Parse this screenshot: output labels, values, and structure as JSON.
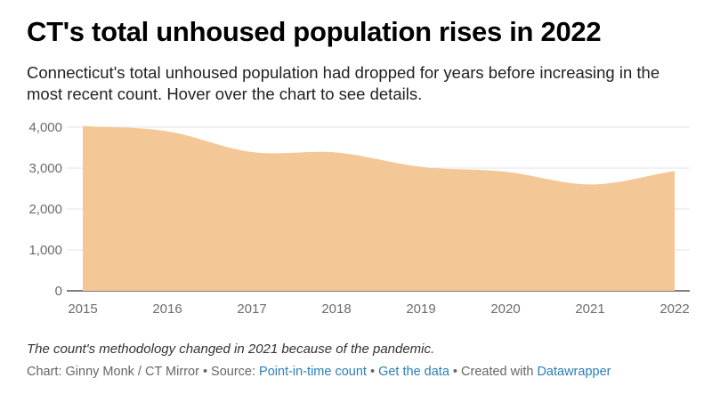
{
  "header": {
    "title": "CT's total unhoused population rises in 2022",
    "subtitle": "Connecticut's total unhoused population had dropped for years before increasing in the most recent count. Hover over the chart to see details."
  },
  "chart_data": {
    "type": "area",
    "title": "CT's total unhoused population rises in 2022",
    "x": [
      "2015",
      "2016",
      "2017",
      "2018",
      "2019",
      "2020",
      "2021",
      "2022"
    ],
    "series": [
      {
        "name": "Total unhoused population",
        "values": [
          4030,
          3900,
          3390,
          3380,
          3030,
          2910,
          2600,
          2930
        ]
      }
    ],
    "ylim": [
      0,
      4000
    ],
    "yticks": [
      0,
      1000,
      2000,
      3000,
      4000
    ],
    "ytick_labels": [
      "0",
      "1,000",
      "2,000",
      "3,000",
      "4,000"
    ],
    "xlabel": "",
    "ylabel": "",
    "grid": true,
    "fill_color": "#f4c796"
  },
  "notes": "The count's methodology changed in 2021 because of the pandemic.",
  "footer": {
    "chart_prefix": "Chart: Ginny Monk / CT Mirror • Source: ",
    "source_link": "Point-in-time count",
    "separator": " • ",
    "data_link": "Get the data",
    "created_prefix": " • Created with ",
    "tool_link": "Datawrapper"
  }
}
